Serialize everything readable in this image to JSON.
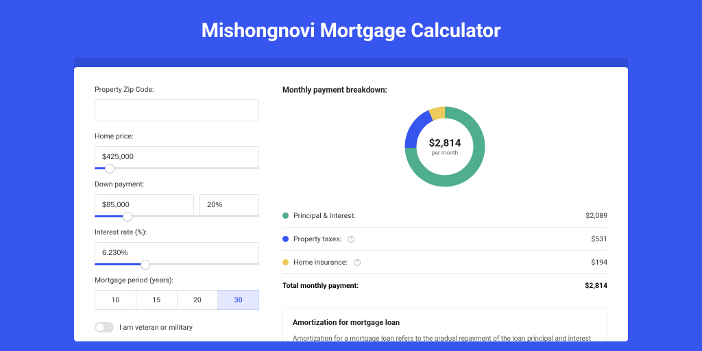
{
  "header": {
    "title": "Mishongnovi Mortgage Calculator"
  },
  "form": {
    "zip": {
      "label": "Property Zip Code:",
      "value": ""
    },
    "home_price": {
      "label": "Home price:",
      "value": "$425,000",
      "slider_pct": 9
    },
    "down_payment": {
      "label": "Down payment:",
      "value": "$85,000",
      "pct": "20%",
      "slider_pct": 20
    },
    "interest": {
      "label": "Interest rate (%):",
      "value": "6.230%",
      "slider_pct": 31
    },
    "period": {
      "label": "Mortgage period (years):",
      "options": [
        "10",
        "15",
        "20",
        "30"
      ],
      "active": "30"
    },
    "veteran": {
      "label": "I am veteran or military"
    }
  },
  "breakdown": {
    "title": "Monthly payment breakdown:",
    "donut": {
      "amount": "$2,814",
      "sub": "per month",
      "segments": [
        {
          "name": "principal",
          "value": 74.2,
          "color": "#4fae8b"
        },
        {
          "name": "taxes",
          "value": 18.9,
          "color": "#3756f0"
        },
        {
          "name": "insurance",
          "value": 6.9,
          "color": "#ecca5c"
        }
      ],
      "stroke_width": 17,
      "radius": 50
    },
    "items": [
      {
        "label": "Principal & Interest:",
        "value": "$2,089",
        "color": "#4fae8b",
        "help": false
      },
      {
        "label": "Property taxes:",
        "value": "$531",
        "color": "#3756f0",
        "help": true
      },
      {
        "label": "Home insurance:",
        "value": "$194",
        "color": "#ecca5c",
        "help": true
      }
    ],
    "total": {
      "label": "Total monthly payment:",
      "value": "$2,814"
    }
  },
  "amort": {
    "title": "Amortization for mortgage loan",
    "text": "Amortization for a mortgage loan refers to the gradual repayment of the loan principal and interest over a specified"
  },
  "colors": {
    "bg": "#3756f0",
    "shadow": "#2f4cd6"
  }
}
